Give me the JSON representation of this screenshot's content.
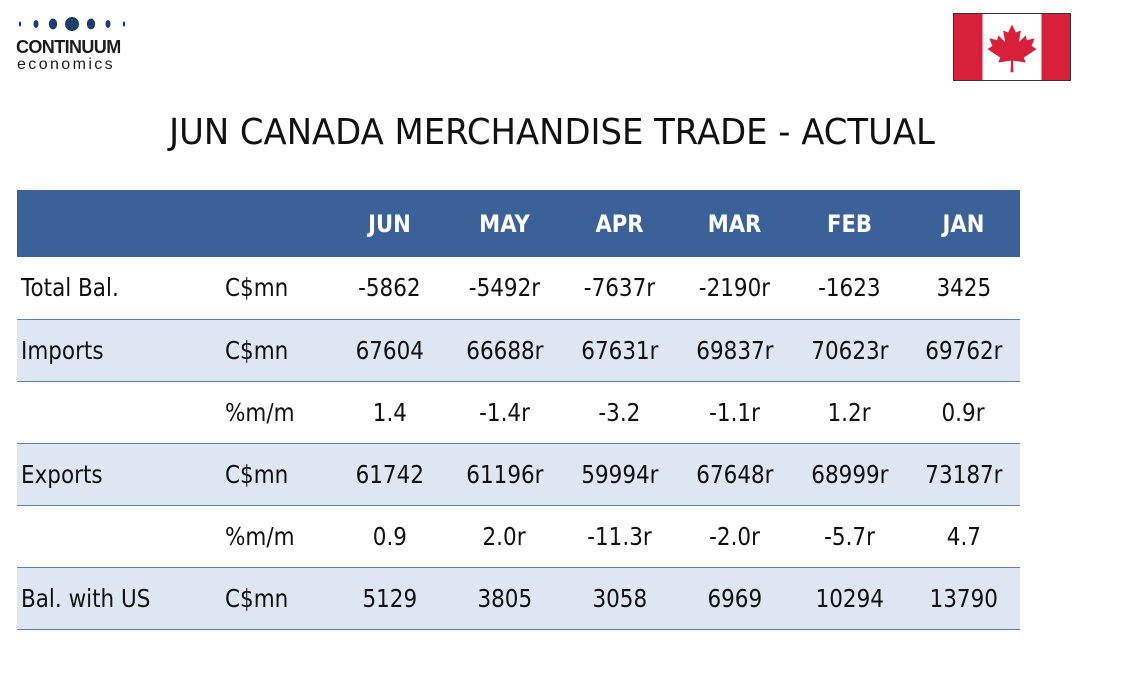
{
  "logo": {
    "line1": "CONTINUUM",
    "line2": "economics",
    "dot_color": "#1f3e6e"
  },
  "flag": {
    "country": "Canada",
    "red": "#d8203a",
    "icon": "maple-leaf-icon"
  },
  "title": "JUN CANADA MERCHANDISE TRADE - ACTUAL",
  "table": {
    "header_color": "#3b6298",
    "shade_color": "#dde6f2",
    "columns": [
      "JUN",
      "MAY",
      "APR",
      "MAR",
      "FEB",
      "JAN"
    ],
    "rows": [
      {
        "label": "Total Bal.",
        "unit": "C$mn",
        "values": [
          "-5862",
          "-5492r",
          "-7637r",
          "-2190r",
          "-1623",
          "3425"
        ]
      },
      {
        "label": "Imports",
        "unit": "C$mn",
        "values": [
          "67604",
          "66688r",
          "67631r",
          "69837r",
          "70623r",
          "69762r"
        ]
      },
      {
        "label": "",
        "unit": "%m/m",
        "values": [
          "1.4",
          "-1.4r",
          "-3.2",
          "-1.1r",
          "1.2r",
          "0.9r"
        ]
      },
      {
        "label": "Exports",
        "unit": "C$mn",
        "values": [
          "61742",
          "61196r",
          "59994r",
          "67648r",
          "68999r",
          "73187r"
        ]
      },
      {
        "label": "",
        "unit": "%m/m",
        "values": [
          "0.9",
          "2.0r",
          "-11.3r",
          "-2.0r",
          "-5.7r",
          "4.7"
        ]
      },
      {
        "label": "Bal. with US",
        "unit": "C$mn",
        "values": [
          "5129",
          "3805",
          "3058",
          "6969",
          "10294",
          "13790"
        ]
      }
    ]
  }
}
